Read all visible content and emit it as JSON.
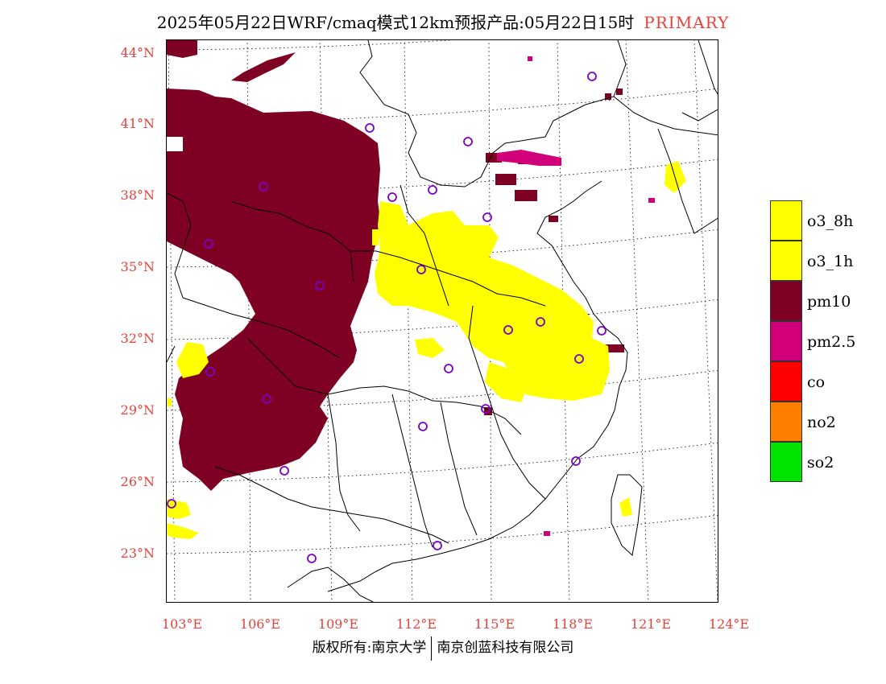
{
  "header": {
    "title": "2025年05月22日WRF/cmaq模式12km预报产品:05月22日15时",
    "tag": "PRIMARY",
    "tag_color": "#e8413a"
  },
  "map": {
    "lat_labels": [
      "44°N",
      "41°N",
      "38°N",
      "35°N",
      "32°N",
      "29°N",
      "26°N",
      "23°N"
    ],
    "lon_labels": [
      "103°E",
      "106°E",
      "109°E",
      "112°E",
      "115°E",
      "118°E",
      "121°E",
      "124°E"
    ],
    "label_color": "#e8413a"
  },
  "legend": {
    "items": [
      {
        "label": "o3_8h",
        "color": "#ffff00"
      },
      {
        "label": "o3_1h",
        "color": "#ffff00"
      },
      {
        "label": "pm10",
        "color": "#7e0023"
      },
      {
        "label": "pm2.5",
        "color": "#d1007a"
      },
      {
        "label": "co",
        "color": "#ff0000"
      },
      {
        "label": "no2",
        "color": "#ff7e00"
      },
      {
        "label": "so2",
        "color": "#00e400"
      }
    ]
  },
  "footer": {
    "left": "版权所有:南京大学",
    "right": "南京创蓝科技有限公司"
  }
}
